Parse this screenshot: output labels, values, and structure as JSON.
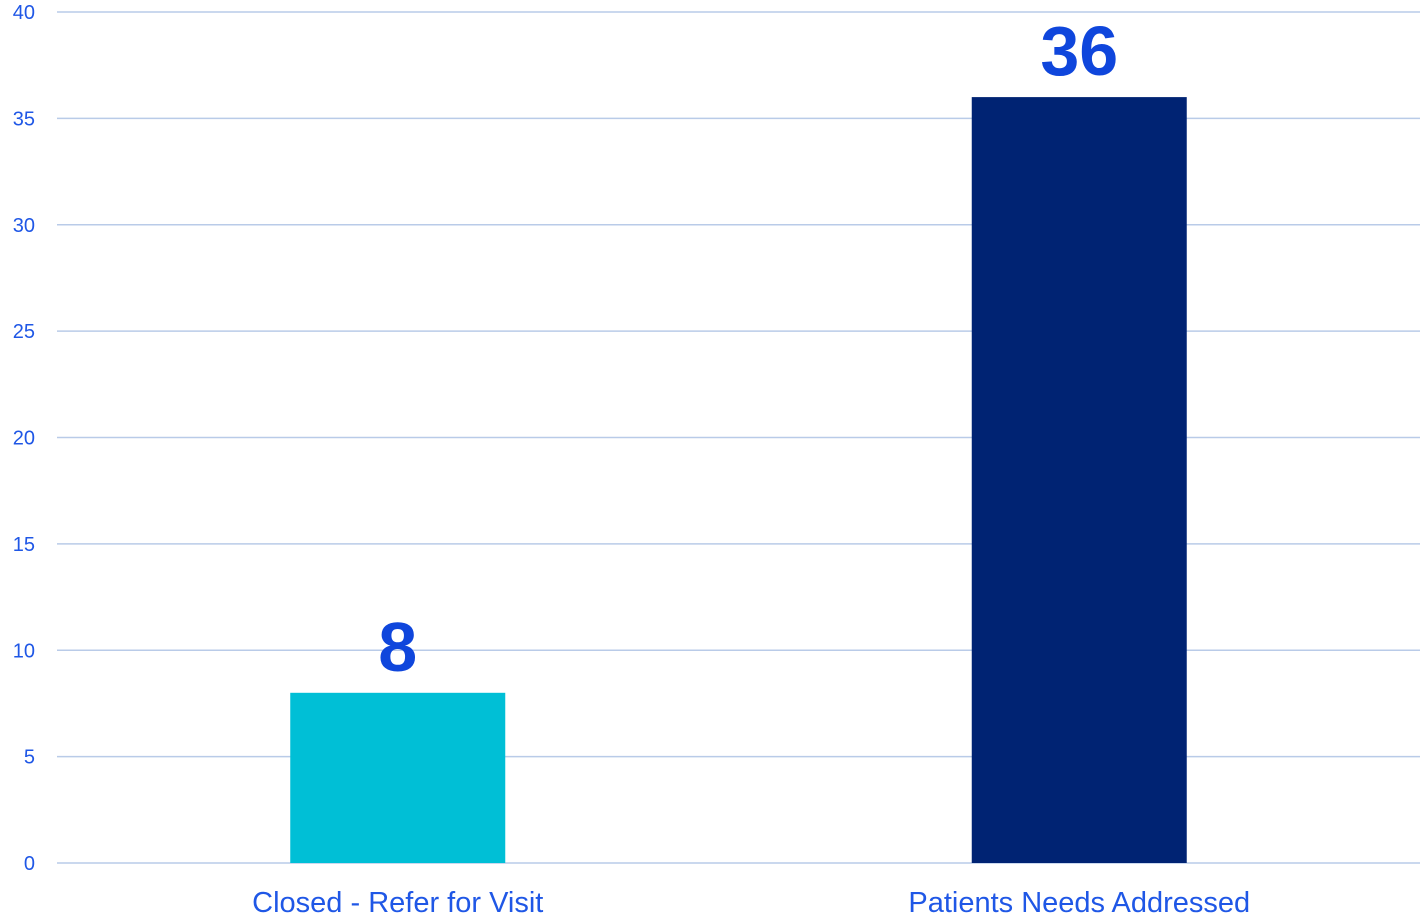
{
  "chart_data": {
    "type": "bar",
    "categories": [
      "Closed - Refer for Visit",
      "Patients Needs Addressed"
    ],
    "values": [
      8,
      36
    ],
    "data_labels": [
      "8",
      "36"
    ],
    "bar_colors": [
      "#00bfd6",
      "#002373"
    ],
    "title": "",
    "xlabel": "",
    "ylabel": "",
    "ylim": [
      0,
      40
    ],
    "yticks": [
      0,
      5,
      10,
      15,
      20,
      25,
      30,
      35,
      40
    ],
    "grid": true,
    "legend": "none",
    "colors": {
      "axis_text": "#1f57e6",
      "data_label": "#0f46dc",
      "grid": "#b9cbe8"
    }
  }
}
